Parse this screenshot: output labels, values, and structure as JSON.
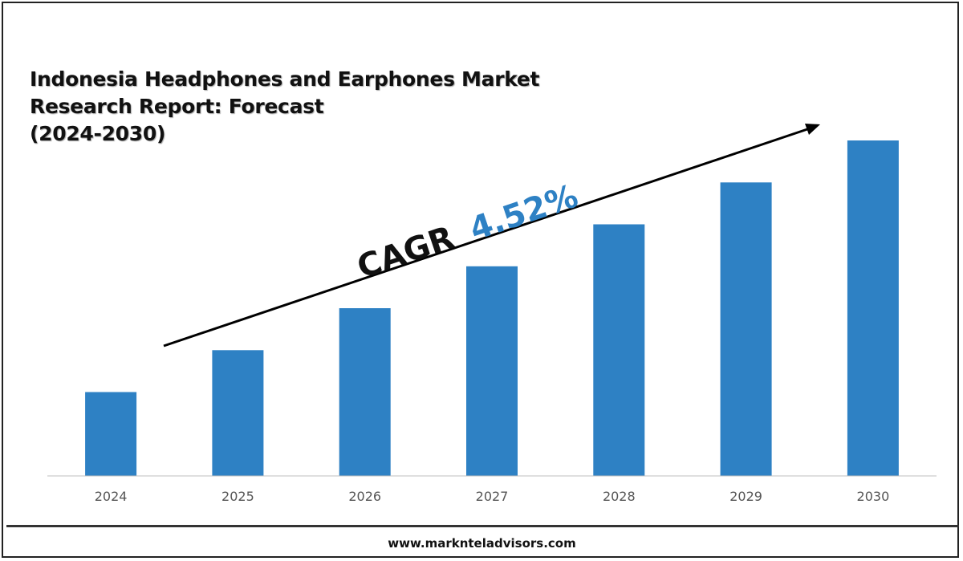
{
  "title_lines": [
    "Indonesia Headphones and Earphones Market",
    "Research Report: Forecast",
    "(2024-2030)"
  ],
  "cagr": {
    "label": "CAGR",
    "value": "4.52%"
  },
  "footer": {
    "url": "www.marknteladvisors.com"
  },
  "colors": {
    "bar": "#2e81c4",
    "cagr_value": "#2e81c4",
    "axis": "#bfbfbf",
    "text": "#111111"
  },
  "chart_data": {
    "type": "bar",
    "title": "Indonesia Headphones and Earphones Market Research Report: Forecast (2024-2030)",
    "categories": [
      "2024",
      "2025",
      "2026",
      "2027",
      "2028",
      "2029",
      "2030"
    ],
    "series": [
      {
        "values": [
          1,
          1.5,
          2,
          2.5,
          3,
          3.5,
          4
        ]
      }
    ],
    "value_axis_shown": false,
    "grid": false,
    "legend": "none",
    "annotation": "CAGR 4.52%"
  }
}
